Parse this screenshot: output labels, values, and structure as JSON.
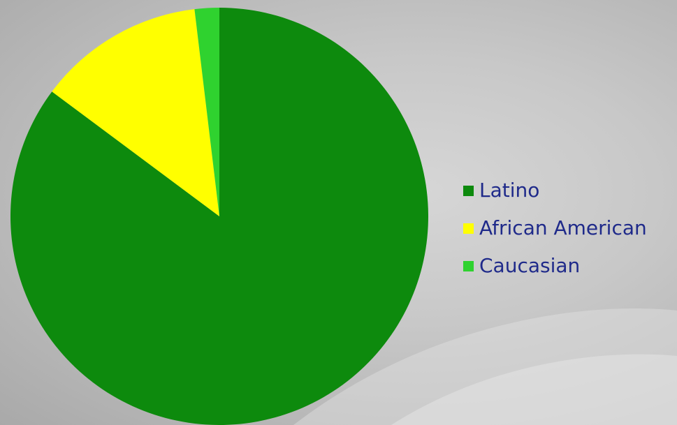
{
  "chart_data": {
    "type": "pie",
    "categories": [
      "Latino",
      "African American",
      "Caucasian"
    ],
    "values": [
      85.2,
      12.9,
      1.9
    ],
    "colors": [
      "#0d8a0d",
      "#ffff00",
      "#2fd22f"
    ],
    "legend_position": "right",
    "start_angle": "top, clockwise"
  }
}
